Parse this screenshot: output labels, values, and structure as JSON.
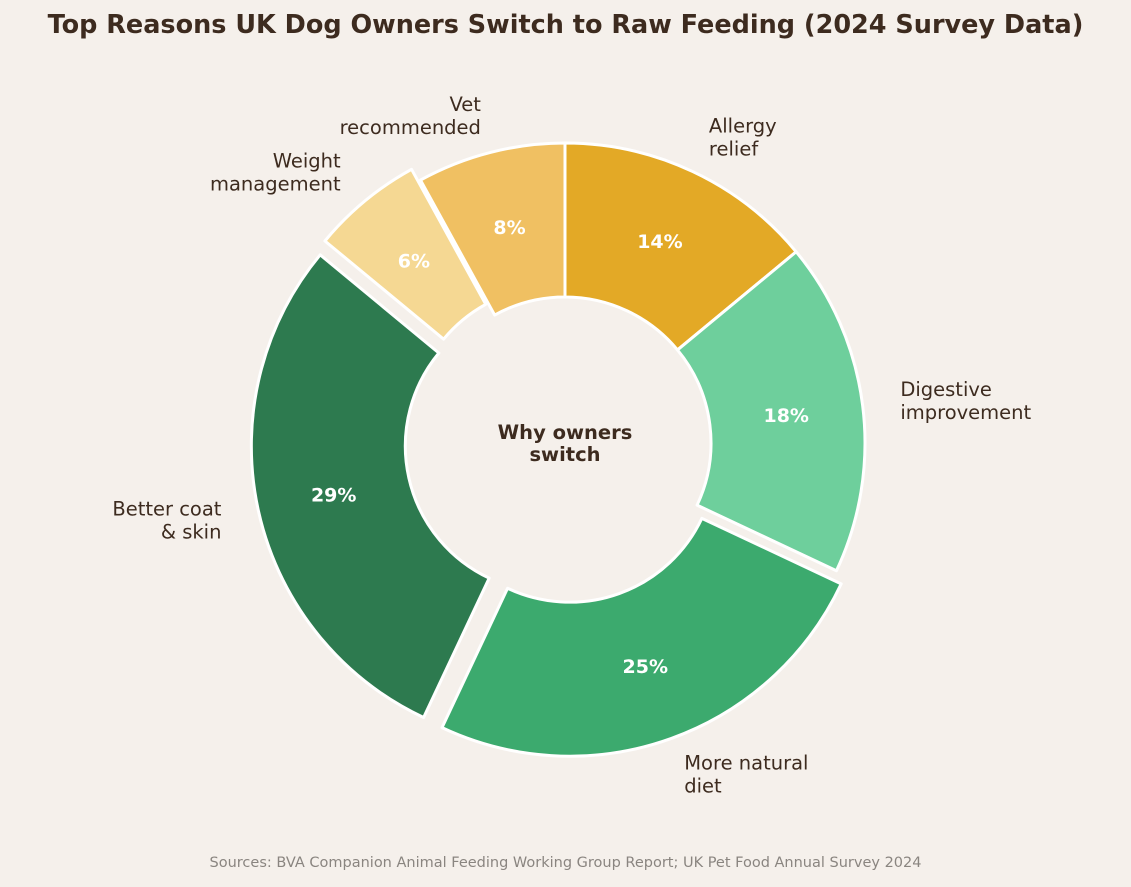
{
  "chart_data": {
    "type": "pie",
    "subtype": "donut",
    "title": "Top Reasons UK Dog Owners Switch to Raw Feeding (2024 Survey Data)",
    "center_text": [
      "Why owners",
      "switch"
    ],
    "start_angle_deg": 90,
    "direction": "clockwise",
    "slices": [
      {
        "name": "Allergy relief",
        "label_lines": [
          "Allergy",
          "relief"
        ],
        "value": 14,
        "label": "14%",
        "color": "#e3a926",
        "explode": 0
      },
      {
        "name": "Digestive improvement",
        "label_lines": [
          "Digestive",
          "improvement"
        ],
        "value": 18,
        "label": "18%",
        "color": "#6ecf9c",
        "explode": 0
      },
      {
        "name": "More natural diet",
        "label_lines": [
          "More natural",
          "diet"
        ],
        "value": 25,
        "label": "25%",
        "color": "#3caa6e",
        "explode": 1
      },
      {
        "name": "Better coat & skin",
        "label_lines": [
          "Better coat",
          "& skin"
        ],
        "value": 29,
        "label": "29%",
        "color": "#2d7a4f",
        "explode": 1
      },
      {
        "name": "Weight management",
        "label_lines": [
          "Weight",
          "management"
        ],
        "value": 6,
        "label": "6%",
        "color": "#f5d893",
        "explode": 1
      },
      {
        "name": "Vet recommended",
        "label_lines": [
          "Vet",
          "recommended"
        ],
        "value": 8,
        "label": "8%",
        "color": "#f0c062",
        "explode": 0
      }
    ],
    "source": "Sources: BVA Companion Animal Feeding Working Group Report; UK Pet Food Annual Survey 2024"
  }
}
